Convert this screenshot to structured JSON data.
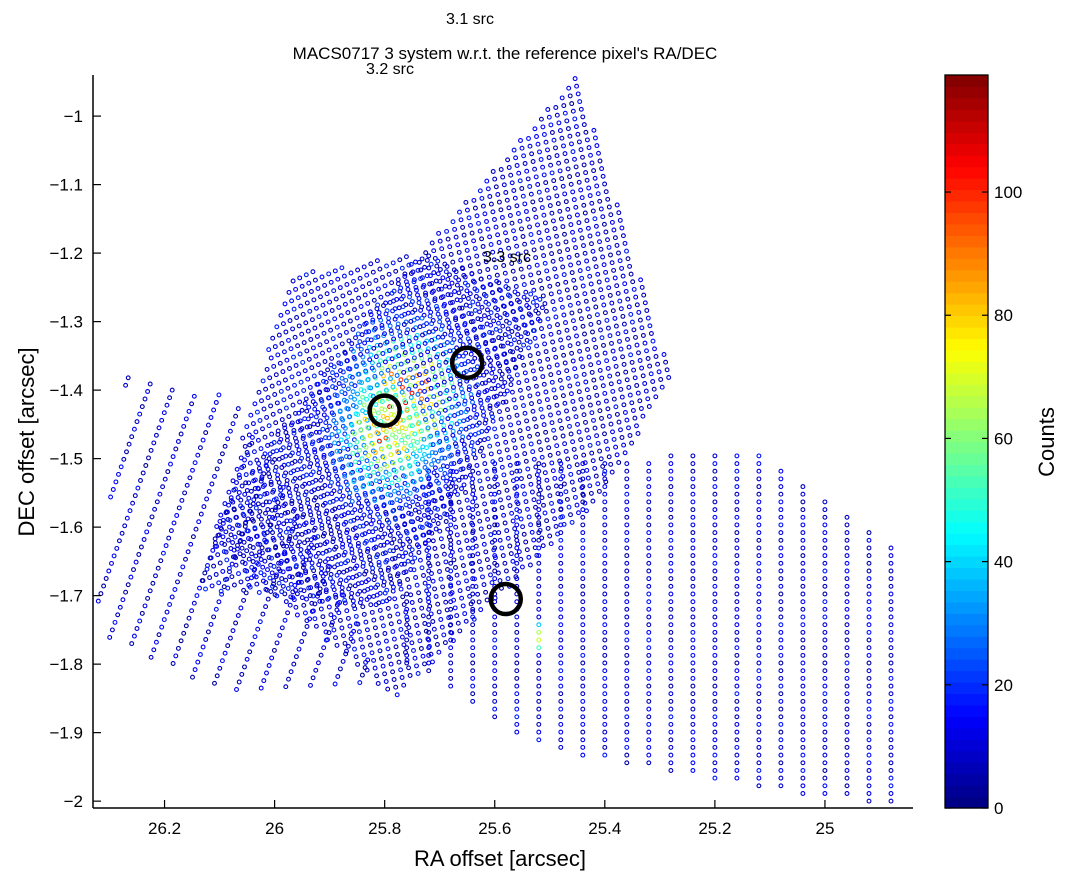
{
  "chart_data": {
    "type": "scatter",
    "title": "MACS0717  3 system w.r.t. the reference pixel's RA/DEC",
    "xlabel": "RA offset [arcsec]",
    "ylabel": "DEC offset [arcsec]",
    "xlim": [
      26.33,
      24.84
    ],
    "ylim": [
      -2.01,
      -0.94
    ],
    "x_reversed": true,
    "grid": false,
    "x_ticks": [
      "26.2",
      "26",
      "25.8",
      "25.6",
      "25.4",
      "25.2",
      "25"
    ],
    "x_tick_values": [
      26.2,
      26.0,
      25.8,
      25.6,
      25.4,
      25.2,
      25.0
    ],
    "y_ticks": [
      "−1",
      "−1.1",
      "−1.2",
      "−1.3",
      "−1.4",
      "−1.5",
      "−1.6",
      "−1.7",
      "−1.8",
      "−1.9",
      "−2"
    ],
    "y_tick_values": [
      -1.0,
      -1.1,
      -1.2,
      -1.3,
      -1.4,
      -1.5,
      -1.6,
      -1.7,
      -1.8,
      -1.9,
      -2.0
    ],
    "colorbar": {
      "label": "Counts",
      "range": [
        0,
        119
      ],
      "ticks": [
        "0",
        "20",
        "40",
        "60",
        "80",
        "100"
      ],
      "tick_values": [
        0,
        20,
        40,
        60,
        80,
        100
      ],
      "colormap": "jet"
    },
    "source_markers": [
      {
        "label": "3.1 src",
        "ra": 25.65,
        "dec": -1.36
      },
      {
        "label": "3.2 src",
        "ra": 25.8,
        "dec": -1.43
      },
      {
        "label": "3.3 src",
        "ra": 25.58,
        "dec": -1.705
      }
    ],
    "pixel_grids": [
      {
        "ra0": 25.82,
        "dec0": -1.43,
        "du": [
          -0.0145,
          0.0029
        ],
        "dv": [
          0.0028,
          0.0112
        ],
        "corners": [
          [
            26.05,
            -1.52
          ],
          [
            25.78,
            -1.24
          ],
          [
            25.45,
            -0.94
          ],
          [
            25.28,
            -1.38
          ],
          [
            25.4,
            -1.55
          ],
          [
            25.78,
            -1.85
          ],
          [
            26.12,
            -1.62
          ]
        ],
        "background": 4,
        "peak_counts": 105,
        "peak_ra": 25.76,
        "peak_dec": -1.41,
        "peak_width": 0.06
      },
      {
        "ra0": 25.82,
        "dec0": -1.52,
        "du": [
          -0.012,
          0.0045
        ],
        "dv": [
          -0.0046,
          -0.0122
        ],
        "corners": [
          [
            25.97,
            -1.23
          ],
          [
            25.73,
            -1.2
          ],
          [
            25.5,
            -1.27
          ],
          [
            25.66,
            -1.55
          ],
          [
            25.8,
            -1.72
          ],
          [
            26.14,
            -1.69
          ]
        ],
        "background": 6,
        "peak_counts": 90,
        "peak_ra": 25.8,
        "peak_dec": -1.47,
        "peak_width": 0.05
      },
      {
        "ra0": 26.33,
        "dec0": -1.73,
        "du": [
          -0.04,
          -0.009
        ],
        "dv": [
          -0.0048,
          0.011
        ],
        "corners": [
          [
            26.33,
            -1.75
          ],
          [
            26.27,
            -1.38
          ],
          [
            26.07,
            -1.41
          ],
          [
            25.9,
            -1.65
          ],
          [
            25.8,
            -1.83
          ],
          [
            26.1,
            -1.84
          ]
        ],
        "background": 3,
        "peak_counts": 0,
        "peak_ra": 26.1,
        "peak_dec": -1.6,
        "peak_width": 0.1
      },
      {
        "ra0": 25.8,
        "dec0": -1.72,
        "du": [
          -0.04,
          0.0
        ],
        "dv": [
          0.0,
          0.0112
        ],
        "corners": [
          [
            25.72,
            -1.51
          ],
          [
            25.12,
            -1.49
          ],
          [
            24.84,
            -1.65
          ],
          [
            24.88,
            -2.01
          ],
          [
            25.5,
            -1.93
          ],
          [
            25.78,
            -1.79
          ]
        ],
        "background": 4,
        "peak_counts": 100,
        "peak_ra": 25.52,
        "peak_dec": -1.76,
        "peak_width": 0.1
      }
    ]
  }
}
